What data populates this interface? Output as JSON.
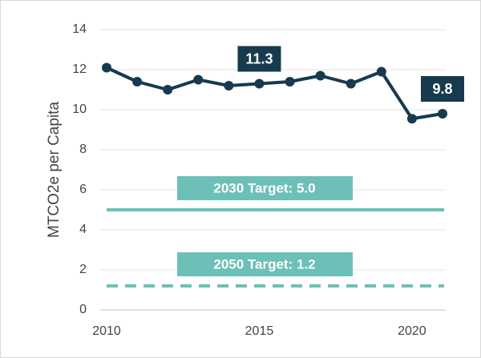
{
  "chart_data": {
    "type": "line",
    "y_label": "MTCO2e per Capita",
    "x": [
      2010,
      2011,
      2012,
      2013,
      2014,
      2015,
      2016,
      2017,
      2018,
      2019,
      2020,
      2021
    ],
    "series": [
      {
        "color": "#173a4e",
        "values": [
          12.1,
          11.4,
          11.0,
          11.5,
          11.2,
          11.3,
          11.4,
          11.7,
          11.3,
          11.9,
          9.55,
          9.8
        ],
        "value_labels": [
          null,
          null,
          null,
          null,
          null,
          "11.3",
          null,
          null,
          null,
          null,
          null,
          "9.8"
        ]
      }
    ],
    "reference_lines": [
      {
        "label": "2030 Target: 5.0",
        "value": 5.0,
        "color": "#6cc0b7",
        "style": "solid"
      },
      {
        "label": "2050 Target: 1.2",
        "value": 1.2,
        "color": "#6cc0b7",
        "style": "dashed"
      }
    ],
    "xlim": [
      2010,
      2021
    ],
    "xticks": [
      2010,
      2015,
      2020
    ],
    "ylim": [
      0,
      14
    ],
    "yticks": [
      0,
      2,
      4,
      6,
      8,
      10,
      12,
      14
    ],
    "grid": true
  }
}
